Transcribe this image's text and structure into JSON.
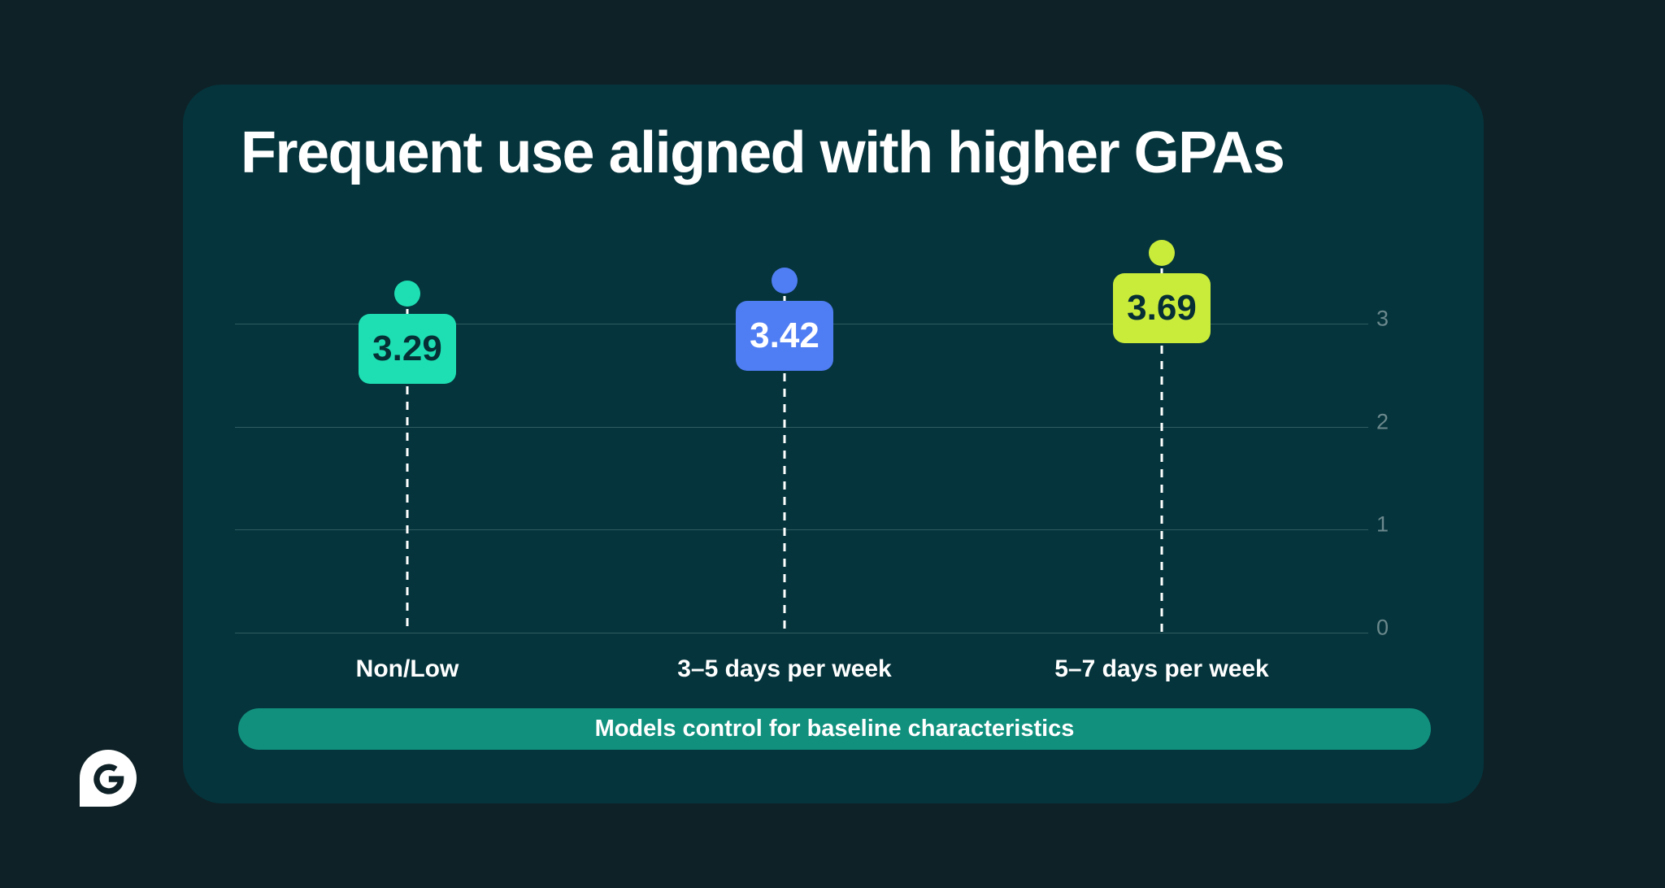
{
  "title": "Frequent use aligned with higher GPAs",
  "banner": {
    "label": "Models control for baseline characteristics",
    "background": "#12907E"
  },
  "colors": {
    "page_background": "#0E2126",
    "card_background": "#05343C",
    "gridline": "rgba(180,210,210,0.25)",
    "tick_label": "#6B898D",
    "stem": "#FFFFFF",
    "title_text": "#FFFFFF"
  },
  "logo": {
    "icon": "grammarly-g-icon",
    "bubble_color": "#FFFFFF",
    "glyph_color": "#0E2126"
  },
  "chart_data": {
    "type": "bar",
    "subtype": "lollipop-badge",
    "title": "Frequent use aligned with higher GPAs",
    "xlabel": "",
    "ylabel": "",
    "categories": [
      "Non/Low",
      "3–5 days per week",
      "5–7 days per week"
    ],
    "values": [
      3.29,
      3.42,
      3.69
    ],
    "value_labels": [
      "3.29",
      "3.42",
      "3.69"
    ],
    "marker_colors": [
      "#1EDFB3",
      "#4F7DF3",
      "#C9EC3A"
    ],
    "value_text_colors": [
      "#062E35",
      "#FFFFFF",
      "#062E35"
    ],
    "yticks": [
      0,
      1,
      2,
      3
    ],
    "ylim": [
      0,
      4
    ],
    "grid": "horizontal",
    "legend": "none",
    "annotation": "Models control for baseline characteristics"
  }
}
